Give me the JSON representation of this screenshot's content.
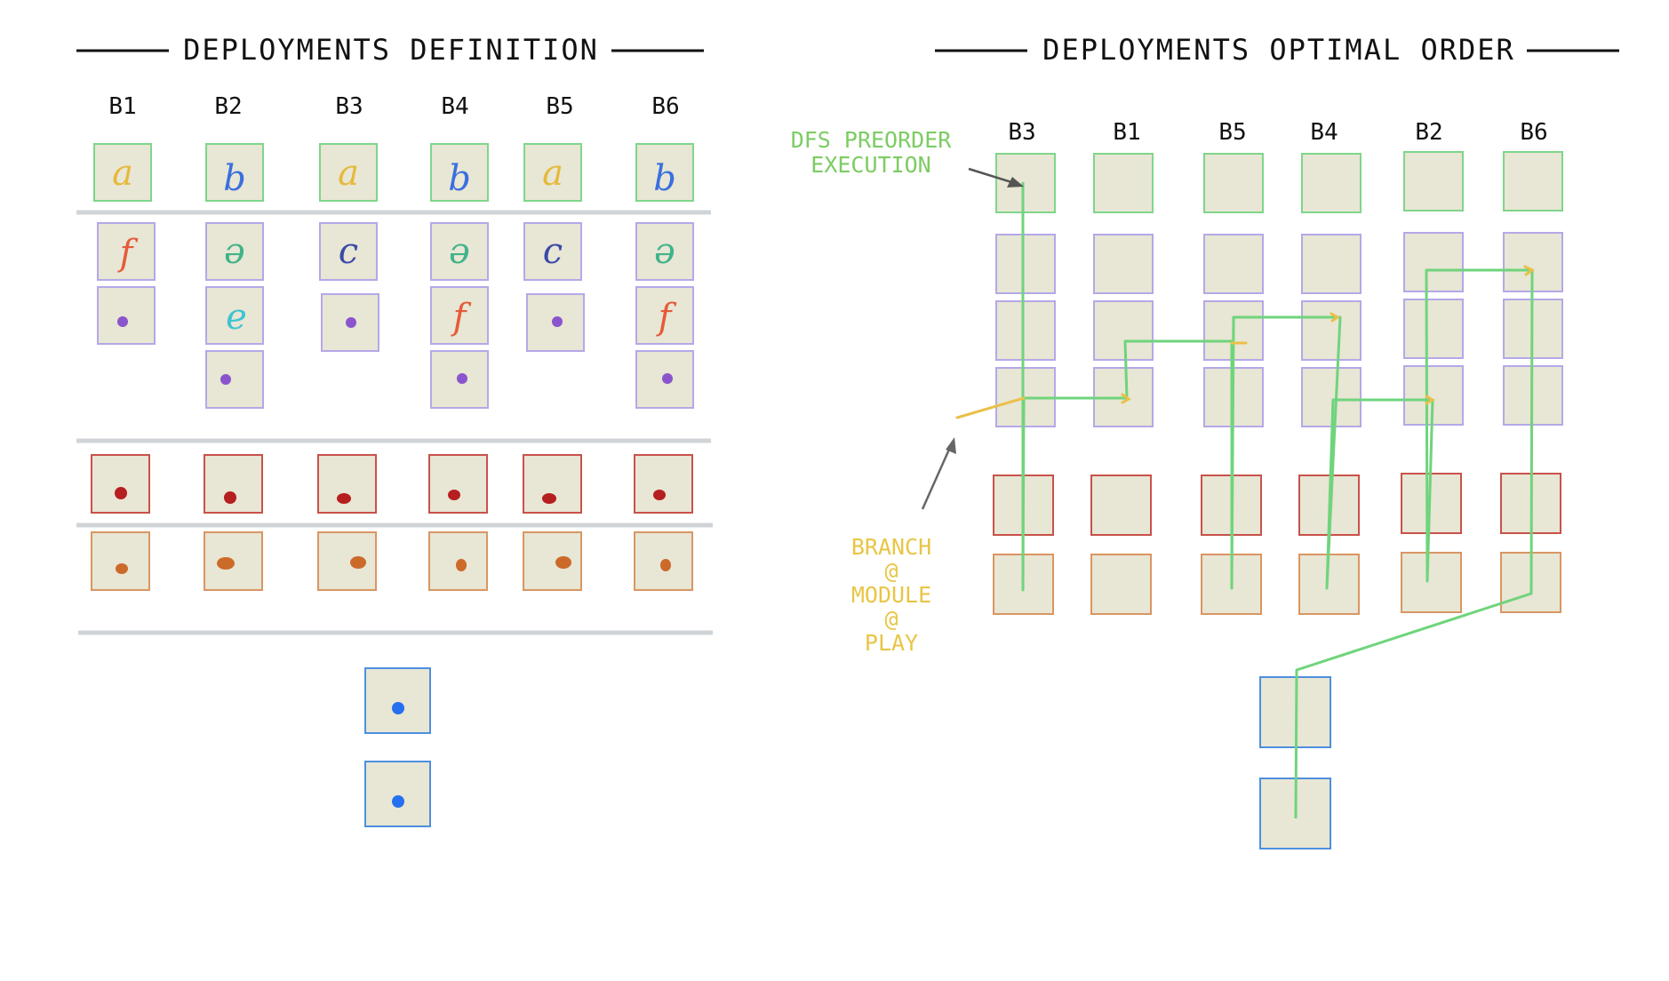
{
  "left_panel": {
    "title": "DEPLOYMENTS DEFINITION",
    "columns": [
      "B1",
      "B2",
      "B3",
      "B4",
      "B5",
      "B6"
    ]
  },
  "right_panel": {
    "title": "DEPLOYMENTS OPTIMAL ORDER",
    "columns": [
      "B3",
      "B1",
      "B5",
      "B4",
      "B2",
      "B6"
    ]
  },
  "annotations": {
    "dfs_line1": "DFS PREORDER",
    "dfs_line2": "EXECUTION",
    "branch_lines": [
      "BRANCH",
      "@",
      "MODULE",
      "@",
      "PLAY"
    ]
  },
  "glyphs": {
    "row1": [
      "a",
      "b",
      "a",
      "b",
      "a",
      "b"
    ],
    "row2": [
      "f",
      "ə",
      "c",
      "ə",
      "c",
      "ə"
    ],
    "row3": [
      "",
      "e",
      "",
      "f",
      "",
      "f"
    ]
  },
  "colors": {
    "box_fill": "#e8e6d4",
    "green_border": "#7fd68b",
    "purple_border": "#b5a8e8",
    "red_border": "#c8524a",
    "orange_border": "#d99663",
    "blue_border": "#4d8fe0",
    "separator": "#d0d4d8",
    "path_green": "#6fd47c",
    "branch_yellow": "#eac04a",
    "purple_dot": "#8a55cc",
    "red_dot": "#b61f1f",
    "orange_dot": "#cc6a2a",
    "blue_dot": "#2470f0",
    "yellow_glyph": "#e6b93c",
    "blue_glyph": "#3a6fe0",
    "teal_glyph": "#3fb38a",
    "red_glyph": "#e55b3a",
    "navy_glyph": "#3b4aa8",
    "cyan_glyph": "#3ec3d2"
  }
}
